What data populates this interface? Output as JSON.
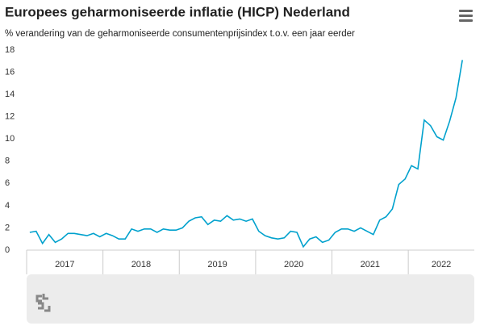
{
  "chart_data": {
    "type": "line",
    "title": "Europees geharmoniseerde inflatie (HICP) Nederland",
    "subtitle": "% verandering van de geharmoniseerde consumentenprijsindex t.o.v. een jaar eerder",
    "year_labels": [
      "2017",
      "2018",
      "2019",
      "2020",
      "2021",
      "2022"
    ],
    "color": "#00a1cd",
    "values": [
      1.6,
      1.7,
      0.6,
      1.4,
      0.7,
      1.0,
      1.5,
      1.5,
      1.4,
      1.3,
      1.5,
      1.2,
      1.5,
      1.3,
      1.0,
      1.0,
      1.9,
      1.7,
      1.9,
      1.9,
      1.6,
      1.9,
      1.8,
      1.8,
      2.0,
      2.6,
      2.9,
      3.0,
      2.3,
      2.7,
      2.6,
      3.1,
      2.7,
      2.8,
      2.6,
      2.8,
      1.7,
      1.3,
      1.1,
      1.0,
      1.1,
      1.7,
      1.6,
      0.3,
      1.0,
      1.2,
      0.7,
      0.9,
      1.6,
      1.9,
      1.9,
      1.7,
      2.0,
      1.7,
      1.4,
      2.7,
      3.0,
      3.7,
      5.9,
      6.4,
      7.6,
      7.3,
      11.7,
      11.2,
      10.2,
      9.9,
      11.6,
      13.7,
      17.1
    ],
    "ylim": [
      0,
      18
    ],
    "yticks": [
      0,
      2,
      4,
      6,
      8,
      10,
      12,
      14,
      16,
      18
    ]
  }
}
